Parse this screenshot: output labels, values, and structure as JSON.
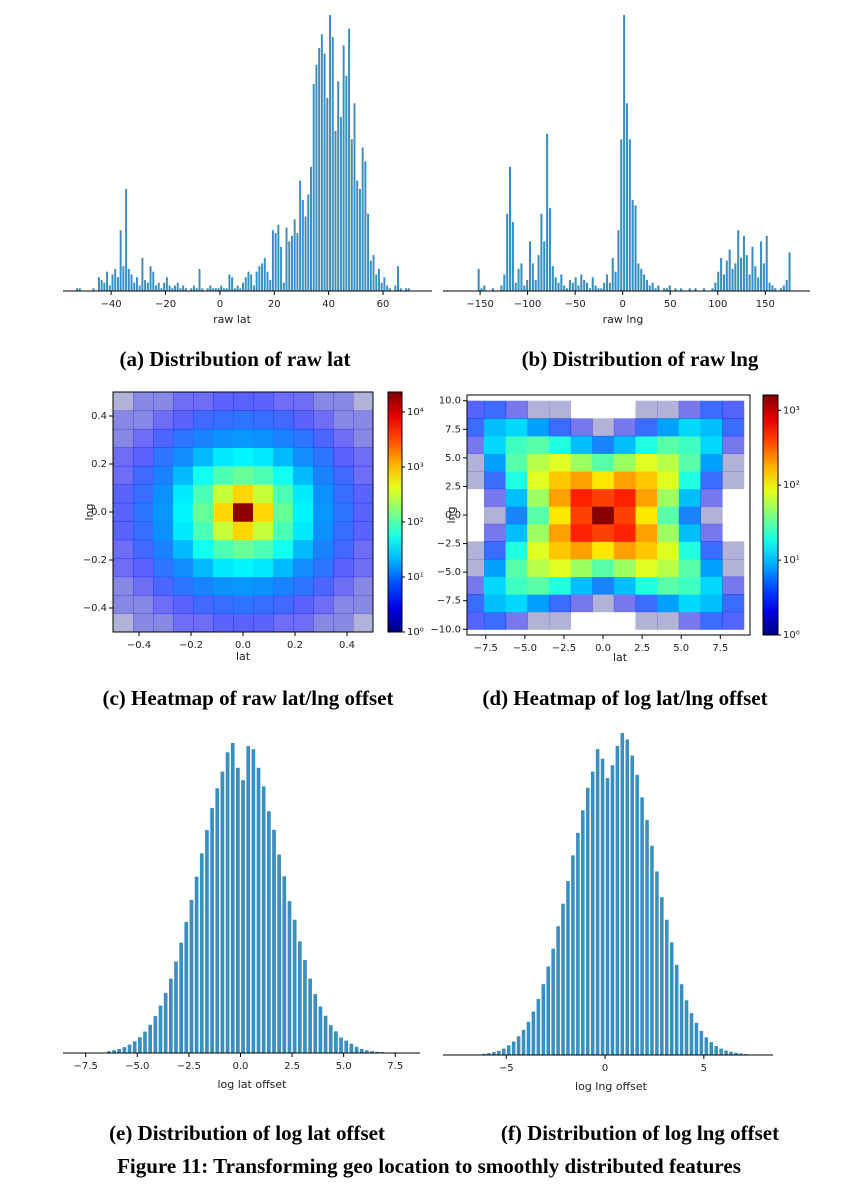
{
  "chart_data": [
    {
      "type": "histogram",
      "caption": "(a) Distribution of raw lat",
      "xlabel": "raw lat",
      "color": "#3a8fc2",
      "bins": [
        -53,
        -52,
        -51,
        -50,
        -49,
        -48,
        -47,
        -46,
        -45,
        -44,
        -43,
        -42,
        -41,
        -40,
        -39,
        -38,
        -37,
        -36,
        -35,
        -34,
        -33,
        -32,
        -31,
        -30,
        -29,
        -28,
        -27,
        -26,
        -25,
        -24,
        -23,
        -22,
        -21,
        -20,
        -19,
        -18,
        -17,
        -16,
        -15,
        -14,
        -13,
        -12,
        -11,
        -10,
        -9,
        -8,
        -7,
        -6,
        -5,
        -4,
        -3,
        -2,
        -1,
        0,
        1,
        2,
        3,
        4,
        5,
        6,
        7,
        8,
        9,
        10,
        11,
        12,
        13,
        14,
        15,
        16,
        17,
        18,
        19,
        20,
        21,
        22,
        23,
        24,
        25,
        26,
        27,
        28,
        29,
        30,
        31,
        32,
        33,
        34,
        35,
        36,
        37,
        38,
        39,
        40,
        41,
        42,
        43,
        44,
        45,
        46,
        47,
        48,
        49,
        50,
        51,
        52,
        53,
        54,
        55,
        56,
        57,
        58,
        59,
        60,
        61,
        62,
        63,
        64,
        65,
        66,
        67,
        68,
        69,
        70,
        71
      ],
      "values": [
        1,
        1,
        0,
        0,
        0,
        0,
        1,
        0,
        5,
        4,
        3,
        7,
        2,
        6,
        8,
        5,
        22,
        9,
        37,
        8,
        6,
        3,
        5,
        2,
        12,
        4,
        3,
        9,
        7,
        2,
        3,
        1,
        3,
        5,
        2,
        1,
        2,
        3,
        1,
        2,
        1,
        0,
        1,
        2,
        1,
        8,
        1,
        0,
        1,
        2,
        1,
        1,
        1,
        2,
        1,
        1,
        6,
        5,
        1,
        2,
        1,
        3,
        5,
        7,
        6,
        2,
        7,
        9,
        10,
        12,
        7,
        4,
        22,
        21,
        24,
        16,
        3,
        23,
        18,
        20,
        26,
        21,
        40,
        33,
        27,
        35,
        45,
        75,
        82,
        88,
        93,
        86,
        70,
        100,
        92,
        58,
        76,
        63,
        89,
        78,
        95,
        55,
        68,
        40,
        37,
        52,
        47,
        28,
        11,
        13,
        6,
        8,
        3,
        5,
        2,
        1,
        0,
        2,
        9,
        1,
        0,
        1,
        1,
        0
      ],
      "xlim": [
        -57.7,
        78
      ],
      "ylim": [
        0,
        100
      ],
      "xticks": [
        {
          "value": -40,
          "label": "−40"
        },
        {
          "value": -20,
          "label": "−20"
        },
        0,
        20,
        40,
        60
      ]
    },
    {
      "type": "histogram",
      "caption": "(b) Distribution of raw lng",
      "xlabel": "raw lng",
      "color": "#3a8fc2",
      "bins": [
        -162,
        -159,
        -156,
        -153,
        -150,
        -147,
        -144,
        -141,
        -138,
        -135,
        -132,
        -129,
        -126,
        -123,
        -120,
        -117,
        -114,
        -111,
        -108,
        -105,
        -102,
        -99,
        -96,
        -93,
        -90,
        -87,
        -84,
        -81,
        -78,
        -75,
        -72,
        -69,
        -66,
        -63,
        -60,
        -57,
        -54,
        -51,
        -48,
        -45,
        -42,
        -39,
        -36,
        -33,
        -30,
        -27,
        -24,
        -21,
        -18,
        -15,
        -12,
        -9,
        -6,
        -3,
        0,
        3,
        6,
        9,
        12,
        15,
        18,
        21,
        24,
        27,
        30,
        33,
        36,
        39,
        42,
        45,
        48,
        51,
        54,
        57,
        60,
        63,
        66,
        69,
        72,
        75,
        78,
        81,
        84,
        87,
        90,
        93,
        96,
        99,
        102,
        105,
        108,
        111,
        114,
        117,
        120,
        123,
        126,
        129,
        132,
        135,
        138,
        141,
        144,
        147,
        150,
        153,
        156,
        159,
        162,
        165,
        168,
        171,
        174,
        177
      ],
      "values": [
        0,
        0,
        0,
        8,
        1,
        2,
        0,
        0,
        1,
        0,
        0,
        2,
        6,
        28,
        45,
        25,
        3,
        8,
        10,
        2,
        4,
        18,
        10,
        4,
        13,
        28,
        18,
        57,
        30,
        9,
        5,
        3,
        6,
        2,
        1,
        4,
        3,
        5,
        2,
        6,
        4,
        3,
        1,
        5,
        2,
        1,
        1,
        3,
        6,
        3,
        12,
        7,
        22,
        55,
        100,
        68,
        55,
        33,
        31,
        10,
        8,
        6,
        4,
        2,
        3,
        1,
        2,
        0,
        1,
        1,
        2,
        0,
        1,
        0,
        1,
        0,
        0,
        1,
        0,
        1,
        0,
        0,
        1,
        0,
        0,
        1,
        3,
        7,
        12,
        6,
        11,
        15,
        8,
        10,
        22,
        12,
        20,
        13,
        6,
        16,
        9,
        5,
        18,
        10,
        20,
        3,
        2,
        1,
        0,
        1,
        2,
        4,
        14
      ],
      "xlim": [
        -189,
        197
      ],
      "ylim": [
        0,
        100
      ],
      "xticks": [
        {
          "value": -150,
          "label": "−150"
        },
        {
          "value": -100,
          "label": "−100"
        },
        {
          "value": -50,
          "label": "−50"
        },
        0,
        50,
        100,
        150
      ]
    },
    {
      "type": "heatmap",
      "caption": "(c) Heatmap of raw lat/lng offset",
      "xlabel": "lat",
      "ylabel": "lng",
      "colormap": "jet",
      "xlim": [
        -0.5,
        0.5
      ],
      "ylim": [
        -0.5,
        0.5
      ],
      "xbins": [
        -0.5,
        0.5
      ],
      "ybins": [
        -0.5,
        0.5
      ],
      "xticks": [
        {
          "value": -0.4,
          "label": "−0.4"
        },
        {
          "value": -0.2,
          "label": "−0.2"
        },
        {
          "value": 0,
          "label": "0.0"
        },
        0.2,
        0.4
      ],
      "yticks": [
        {
          "value": -0.4,
          "label": "−0.4"
        },
        {
          "value": -0.2,
          "label": "−0.2"
        },
        {
          "value": 0,
          "label": "0.0"
        },
        0.2,
        0.4
      ],
      "z": [
        [
          1,
          2,
          2,
          3,
          3,
          4,
          4,
          4,
          3,
          3,
          2,
          2,
          1
        ],
        [
          2,
          2,
          3,
          4,
          6,
          7,
          8,
          7,
          6,
          4,
          3,
          2,
          2
        ],
        [
          2,
          3,
          5,
          8,
          11,
          14,
          15,
          14,
          11,
          8,
          5,
          3,
          2
        ],
        [
          3,
          4,
          8,
          13,
          22,
          35,
          40,
          35,
          22,
          13,
          8,
          4,
          3
        ],
        [
          3,
          6,
          11,
          22,
          50,
          90,
          120,
          90,
          50,
          22,
          11,
          6,
          3
        ],
        [
          4,
          7,
          14,
          35,
          90,
          300,
          800,
          300,
          90,
          35,
          14,
          7,
          4
        ],
        [
          4,
          8,
          15,
          40,
          120,
          800,
          20000,
          800,
          120,
          40,
          15,
          8,
          4
        ],
        [
          4,
          7,
          14,
          35,
          90,
          300,
          800,
          300,
          90,
          35,
          14,
          7,
          4
        ],
        [
          3,
          6,
          11,
          22,
          50,
          90,
          120,
          90,
          50,
          22,
          11,
          6,
          3
        ],
        [
          3,
          4,
          8,
          13,
          22,
          35,
          40,
          35,
          22,
          13,
          8,
          4,
          3
        ],
        [
          2,
          3,
          5,
          8,
          11,
          14,
          15,
          14,
          11,
          8,
          5,
          3,
          2
        ],
        [
          2,
          2,
          3,
          4,
          6,
          7,
          8,
          7,
          6,
          4,
          3,
          2,
          2
        ],
        [
          1,
          2,
          2,
          3,
          3,
          4,
          4,
          4,
          3,
          3,
          2,
          2,
          1
        ]
      ],
      "colorbar": {
        "scale": "log",
        "lim": [
          1,
          23000
        ],
        "ticks": [
          {
            "value": 1,
            "label": "10⁰"
          },
          {
            "value": 10,
            "label": "10¹"
          },
          {
            "value": 100,
            "label": "10²"
          },
          {
            "value": 1000,
            "label": "10³"
          },
          {
            "value": 10000,
            "label": "10⁴"
          }
        ]
      }
    },
    {
      "type": "heatmap",
      "caption": "(d) Heatmap of log lat/lng offset",
      "xlabel": "lat",
      "ylabel": "lng",
      "colormap": "jet",
      "xlim": [
        -8.7,
        9.4
      ],
      "ylim": [
        -10.5,
        10.5
      ],
      "xbins": [
        -9,
        9
      ],
      "ybins": [
        -10,
        10
      ],
      "xticks": [
        {
          "value": -7.5,
          "label": "−7.5"
        },
        {
          "value": -5,
          "label": "−5.0"
        },
        {
          "value": -2.5,
          "label": "−2.5"
        },
        {
          "value": 0,
          "label": "0.0"
        },
        2.5,
        {
          "value": 5,
          "label": "5.0"
        },
        7.5
      ],
      "yticks": [
        {
          "value": -10,
          "label": "−10.0"
        },
        {
          "value": -7.5,
          "label": "−7.5"
        },
        {
          "value": -5,
          "label": "−5.0"
        },
        {
          "value": -2.5,
          "label": "−2.5"
        },
        {
          "value": 0,
          "label": "0.0"
        },
        2.5,
        {
          "value": 5,
          "label": "5.0"
        },
        7.5,
        {
          "value": 10,
          "label": "10.0"
        }
      ],
      "z": [
        [
          3,
          4,
          2,
          1,
          1,
          0,
          0,
          0,
          1,
          1,
          2,
          4,
          3
        ],
        [
          4,
          10,
          12,
          8,
          4,
          2,
          1,
          2,
          4,
          8,
          12,
          10,
          4
        ],
        [
          2,
          12,
          25,
          30,
          20,
          10,
          6,
          10,
          20,
          30,
          25,
          12,
          2
        ],
        [
          1,
          8,
          30,
          60,
          80,
          50,
          30,
          50,
          80,
          60,
          30,
          8,
          1
        ],
        [
          1,
          4,
          20,
          80,
          150,
          200,
          120,
          200,
          150,
          80,
          20,
          4,
          1
        ],
        [
          0,
          2,
          10,
          50,
          200,
          500,
          400,
          500,
          200,
          50,
          10,
          2,
          0
        ],
        [
          0,
          1,
          6,
          30,
          120,
          400,
          1500,
          400,
          120,
          30,
          6,
          1,
          0
        ],
        [
          0,
          2,
          10,
          50,
          200,
          500,
          400,
          500,
          200,
          50,
          10,
          2,
          0
        ],
        [
          1,
          4,
          20,
          80,
          150,
          200,
          120,
          200,
          150,
          80,
          20,
          4,
          1
        ],
        [
          1,
          8,
          30,
          60,
          80,
          50,
          30,
          50,
          80,
          60,
          30,
          8,
          1
        ],
        [
          2,
          12,
          25,
          30,
          20,
          10,
          6,
          10,
          20,
          30,
          25,
          12,
          2
        ],
        [
          4,
          10,
          12,
          8,
          4,
          2,
          1,
          2,
          4,
          8,
          12,
          10,
          4
        ],
        [
          3,
          4,
          2,
          1,
          1,
          0,
          0,
          0,
          1,
          1,
          2,
          4,
          3
        ]
      ],
      "colorbar": {
        "scale": "log",
        "lim": [
          1,
          1600
        ],
        "ticks": [
          {
            "value": 1,
            "label": "10⁰"
          },
          {
            "value": 10,
            "label": "10¹"
          },
          {
            "value": 100,
            "label": "10²"
          },
          {
            "value": 1000,
            "label": "10³"
          }
        ]
      }
    },
    {
      "type": "histogram",
      "caption": "(e) Distribution of log lat offset",
      "xlabel": "log lat offset",
      "color": "#3a8fc2",
      "bins": [
        -6.5,
        -6.25,
        -6,
        -5.75,
        -5.5,
        -5.25,
        -5,
        -4.75,
        -4.5,
        -4.25,
        -4,
        -3.75,
        -3.5,
        -3.25,
        -3,
        -2.75,
        -2.5,
        -2.25,
        -2,
        -1.75,
        -1.5,
        -1.25,
        -1,
        -0.75,
        -0.5,
        -0.25,
        0,
        0.25,
        0.5,
        0.75,
        1,
        1.25,
        1.5,
        1.75,
        2,
        2.25,
        2.5,
        2.75,
        3,
        3.25,
        3.5,
        3.75,
        4,
        4.25,
        4.5,
        4.75,
        5,
        5.25,
        5.5,
        5.75,
        6,
        6.25,
        6.5,
        6.75,
        7
      ],
      "values": [
        0.6,
        0.9,
        1.3,
        1.9,
        2.7,
        3.8,
        5.1,
        6.9,
        9.1,
        11.9,
        15.3,
        19.4,
        24,
        29.5,
        35.6,
        42.3,
        49.4,
        56.9,
        64.4,
        71.9,
        79,
        85.4,
        90.8,
        97,
        100,
        92,
        88,
        99,
        98,
        92,
        86,
        78,
        72,
        64,
        57,
        49,
        43,
        36,
        30,
        24,
        19,
        15,
        12,
        9,
        7,
        5,
        4,
        3,
        2,
        1.3,
        0.9,
        0.6,
        0.4,
        0.3
      ],
      "xlim": [
        -8.6,
        8.7
      ],
      "ylim": [
        0,
        100
      ],
      "xticks": [
        {
          "value": -7.5,
          "label": "−7.5"
        },
        {
          "value": -5,
          "label": "−5.0"
        },
        {
          "value": -2.5,
          "label": "−2.5"
        },
        {
          "value": 0,
          "label": "0.0"
        },
        2.5,
        {
          "value": 5,
          "label": "5.0"
        },
        7.5
      ]
    },
    {
      "type": "histogram",
      "caption": "(f) Distribution of log lng offset",
      "xlabel": "log lng offset",
      "color": "#3a8fc2",
      "bins": [
        -6.25,
        -6,
        -5.75,
        -5.5,
        -5.25,
        -5,
        -4.75,
        -4.5,
        -4.25,
        -4,
        -3.75,
        -3.5,
        -3.25,
        -3,
        -2.75,
        -2.5,
        -2.25,
        -2,
        -1.75,
        -1.5,
        -1.25,
        -1,
        -0.75,
        -0.5,
        -0.25,
        0,
        0.25,
        0.5,
        0.75,
        1,
        1.25,
        1.5,
        1.75,
        2,
        2.25,
        2.5,
        2.75,
        3,
        3.25,
        3.5,
        3.75,
        4,
        4.25,
        4.5,
        4.75,
        5,
        5.25,
        5.5,
        5.75,
        6,
        6.25,
        6.5,
        6.75,
        7,
        7.25
      ],
      "values": [
        0.4,
        0.6,
        0.9,
        1.3,
        2,
        3,
        4.2,
        5.8,
        7.8,
        10.3,
        13.5,
        17.4,
        22,
        27.5,
        33,
        40,
        47,
        54,
        62,
        69,
        76,
        83,
        88,
        95,
        92,
        86,
        90,
        96,
        100,
        98,
        93,
        87,
        80,
        73,
        65,
        57,
        49,
        42,
        35,
        28,
        22,
        17,
        13,
        10,
        7.5,
        5.5,
        4,
        2.8,
        2,
        1.4,
        1,
        0.7,
        0.5,
        0.3
      ],
      "xlim": [
        -8.2,
        8.5
      ],
      "ylim": [
        0,
        100
      ],
      "xticks": [
        {
          "value": -5,
          "label": "−5"
        },
        0,
        5
      ]
    }
  ],
  "figure_caption": "Figure 11: Transforming geo location to smoothly distributed features"
}
